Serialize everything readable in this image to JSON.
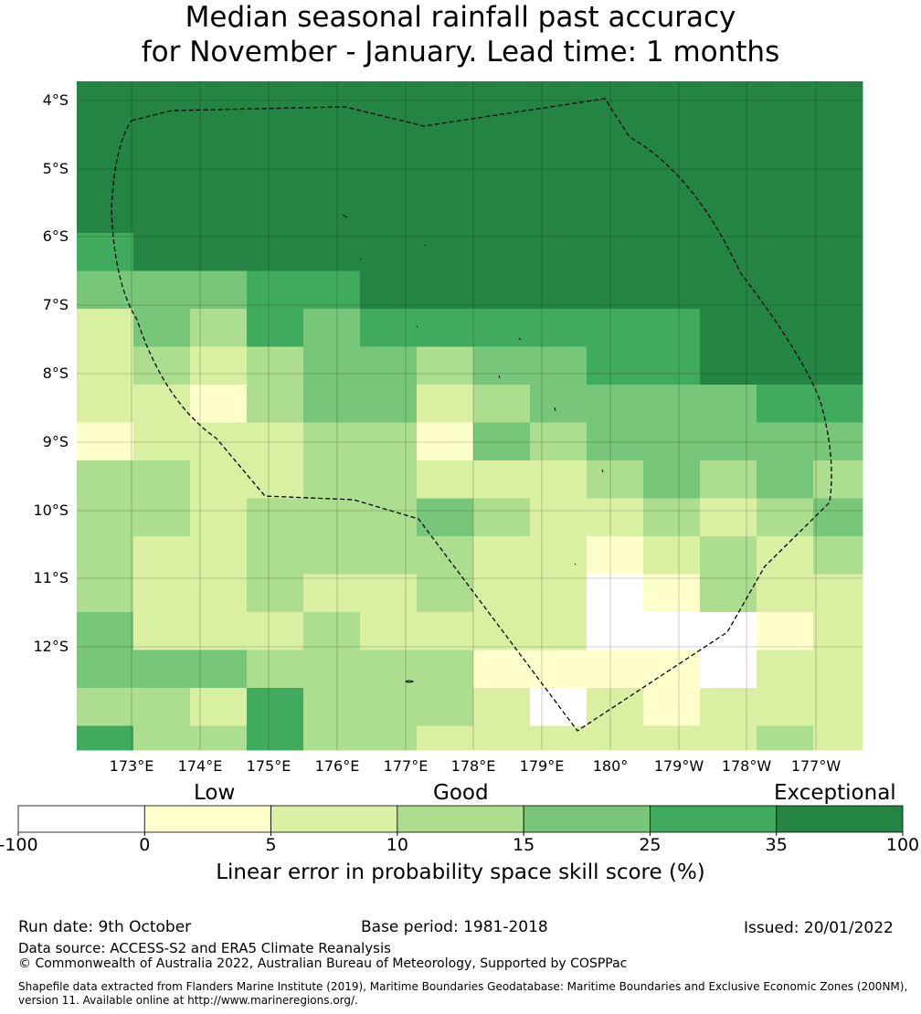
{
  "title": {
    "line1": "Median seasonal rainfall past accuracy",
    "line2": "for November - January. Lead time: 1 months"
  },
  "colors": {
    "exceptional_35_100": "#238443",
    "25_35": "#41ab5d",
    "15_25": "#78c679",
    "10_15": "#addd8e",
    "5_10": "#d9f0a3",
    "0_5": "#ffffcc",
    "neg_0": "#ffffff"
  },
  "map": {
    "lat_labels": [
      "4°S",
      "5°S",
      "6°S",
      "7°S",
      "8°S",
      "9°S",
      "10°S",
      "11°S",
      "12°S"
    ],
    "lon_labels": [
      "173°E",
      "174°E",
      "175°E",
      "176°E",
      "177°E",
      "178°E",
      "179°E",
      "180°",
      "179°W",
      "178°W",
      "177°W"
    ],
    "grid_rows": [
      "AAAAAAAAAAAAAA",
      "AAAAAAAAAAAAAA",
      "AAAAAAAAAAAAAA",
      "AAAAAAAAAAAAAA",
      "BAAAAAAAAAAAAA",
      "CCCBBAAAAAAAAA",
      "ECDBCBBBBBBAAA",
      "EDEDCCDCCBBAAA",
      "EEFDCCEDCCCCBB",
      "FEEEDDFCDCCCCC",
      "DDEEDDEEEDCDCD",
      "DDEDDDCDEEDEDC",
      "DEEDDDDEEFEDED",
      "DEEDEEDEEGFDEE",
      "CEEEDEEEEGGGFE",
      "CCCDDDDFFFFGEE",
      "DDEBDDDEGEFEEE",
      "BDDBDDEEEEEEDE"
    ]
  },
  "colorbar": {
    "categories": [
      "Low",
      "Good",
      "Exceptional"
    ],
    "ticks": [
      "-100",
      "0",
      "5",
      "10",
      "15",
      "25",
      "35",
      "100"
    ],
    "label": "Linear error in probability space skill score (%)"
  },
  "footer": {
    "run_date": "Run date: 9th October",
    "base_period": "Base period: 1981-2018",
    "issued": "Issued: 20/01/2022",
    "data_source": "Data source: ACCESS-S2 and ERA5 Climate Reanalysis",
    "copyright": "© Commonwealth of Australia 2022, Australian Bureau of Meteorology, Supported by COSPPac",
    "shapefile_line1": "Shapefile data extracted from Flanders Marine Institute (2019), Maritime Boundaries Geodatabase: Maritime Boundaries and Exclusive Economic Zones (200NM),",
    "shapefile_line2": "version 11. Available online at http://www.marineregions.org/."
  }
}
